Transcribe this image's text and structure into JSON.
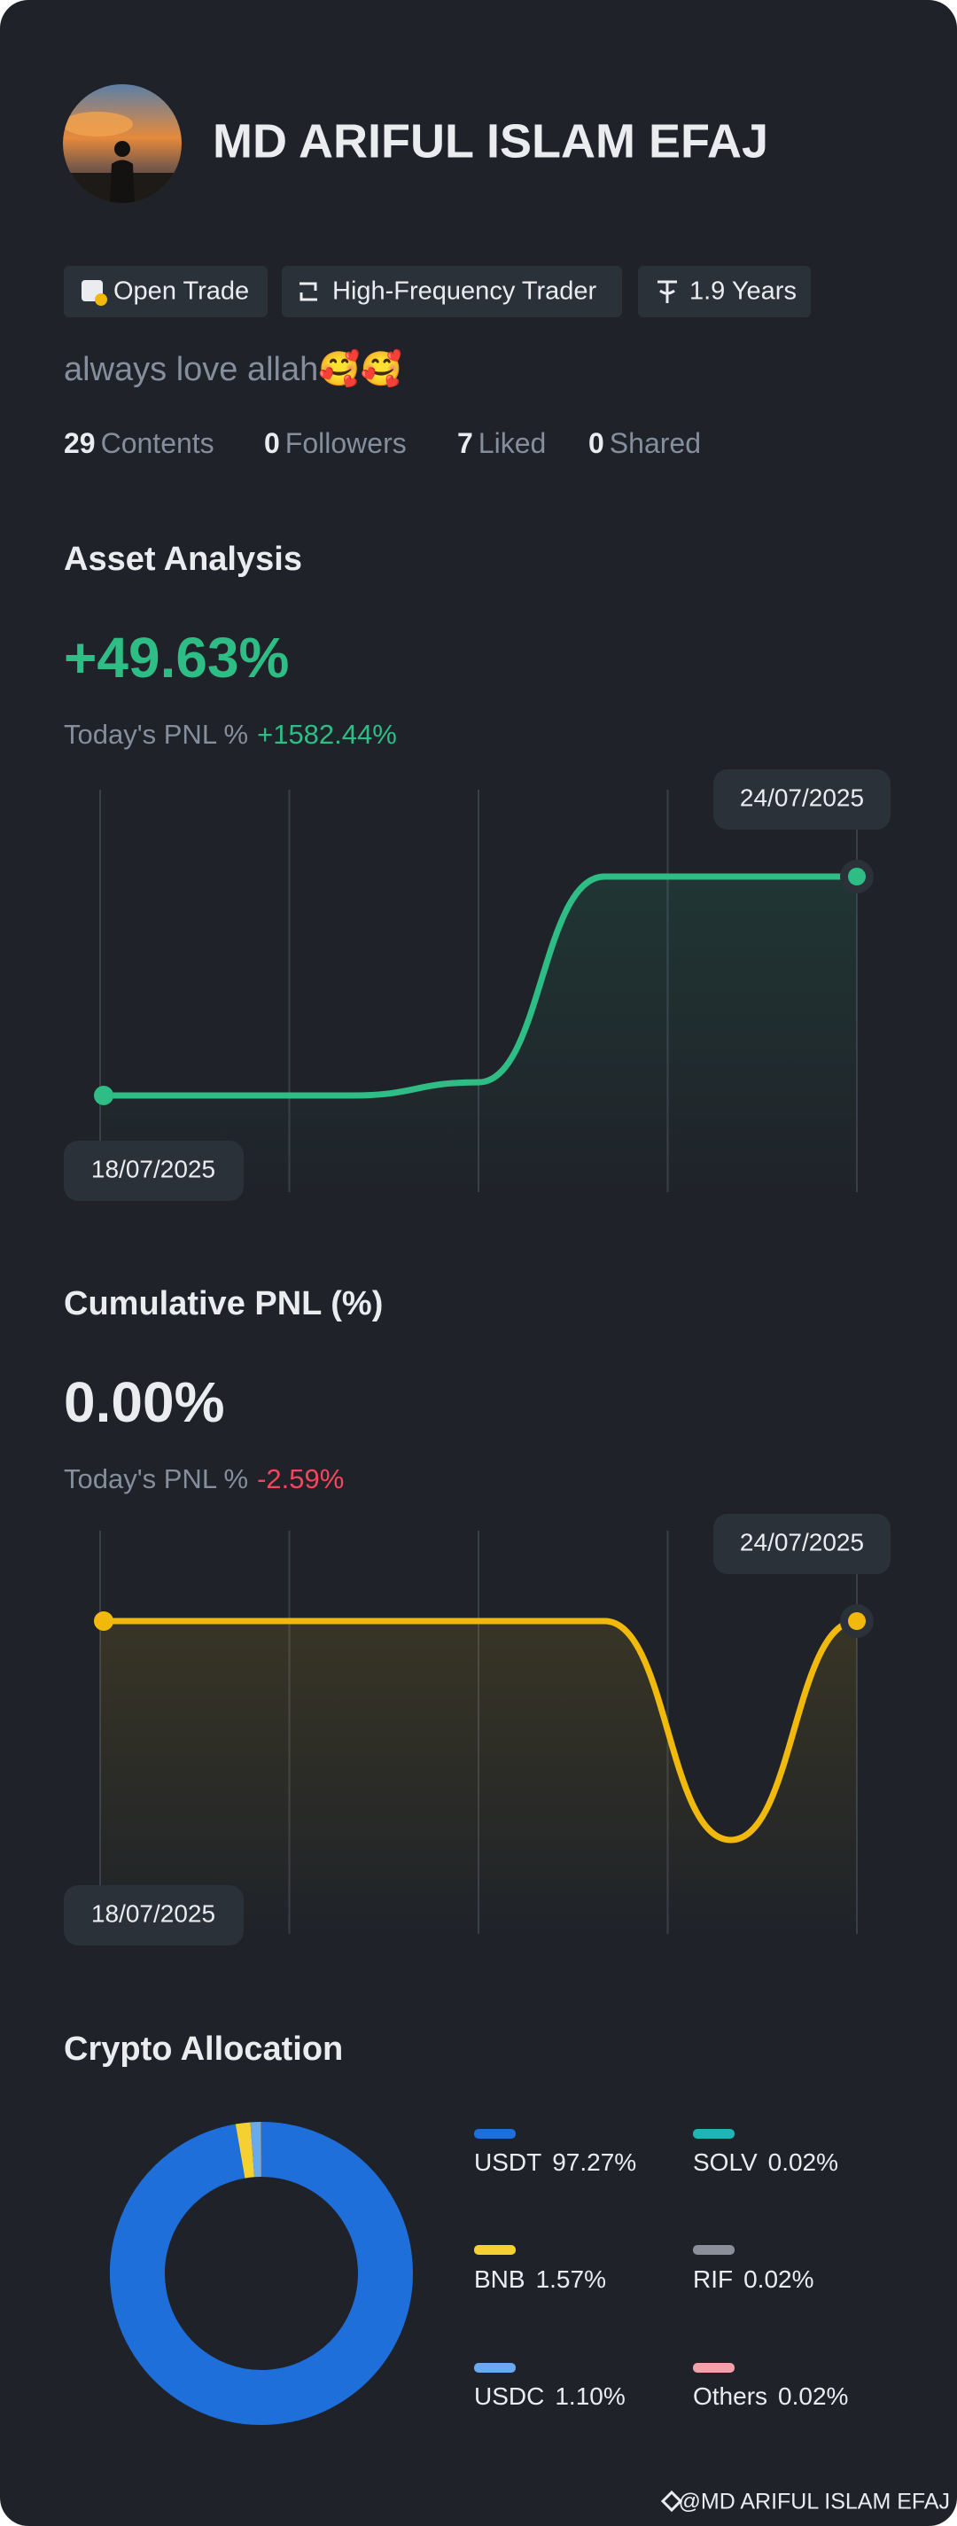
{
  "profile": {
    "name": "MD ARIFUL ISLAM EFAJ",
    "tags": [
      "Open Trade",
      "High-Frequency Trader",
      "1.9 Years"
    ],
    "bio": "always love allah🥰🥰",
    "stats": [
      {
        "value": 29,
        "label": "Contents"
      },
      {
        "value": 0,
        "label": "Followers"
      },
      {
        "value": 7,
        "label": "Liked"
      },
      {
        "value": 0,
        "label": "Shared"
      }
    ]
  },
  "chart_data": [
    {
      "type": "line",
      "title": "Asset Analysis",
      "headline": "+49.63%",
      "pnl_label": "Today's PNL %",
      "pnl_value": "+1582.44%",
      "categories": [
        "18/07/2025",
        null,
        null,
        null,
        null,
        null,
        "24/07/2025"
      ],
      "series": [
        {
          "color": "#2ebd85",
          "values": [
            0,
            0,
            0,
            3,
            49.63,
            49.63,
            49.63
          ]
        }
      ]
    },
    {
      "type": "line",
      "title": "Cumulative PNL (%)",
      "headline": "0.00%",
      "pnl_label": "Today's PNL %",
      "pnl_value": "-2.59%",
      "categories": [
        "18/07/2025",
        null,
        null,
        null,
        null,
        null,
        "24/07/2025"
      ],
      "series": [
        {
          "color": "#f0b90b",
          "values": [
            0,
            0,
            0,
            0,
            0,
            -2.59,
            0
          ]
        }
      ]
    },
    {
      "type": "pie",
      "title": "Crypto Allocation",
      "categories": [
        "USDT",
        "BNB",
        "USDC",
        "SOLV",
        "RIF",
        "Others"
      ],
      "values": [
        97.27,
        1.57,
        1.1,
        0.02,
        0.02,
        0.02
      ],
      "value_labels": [
        "97.27%",
        "1.57%",
        "1.10%",
        "0.02%",
        "0.02%",
        "0.02%"
      ],
      "colors": [
        "#1e6fd9",
        "#f5d033",
        "#6aa8f0",
        "#1fb5b5",
        "#8a8f99",
        "#f3a0aa"
      ]
    }
  ],
  "footer": "@MD ARIFUL ISLAM EFAJ"
}
